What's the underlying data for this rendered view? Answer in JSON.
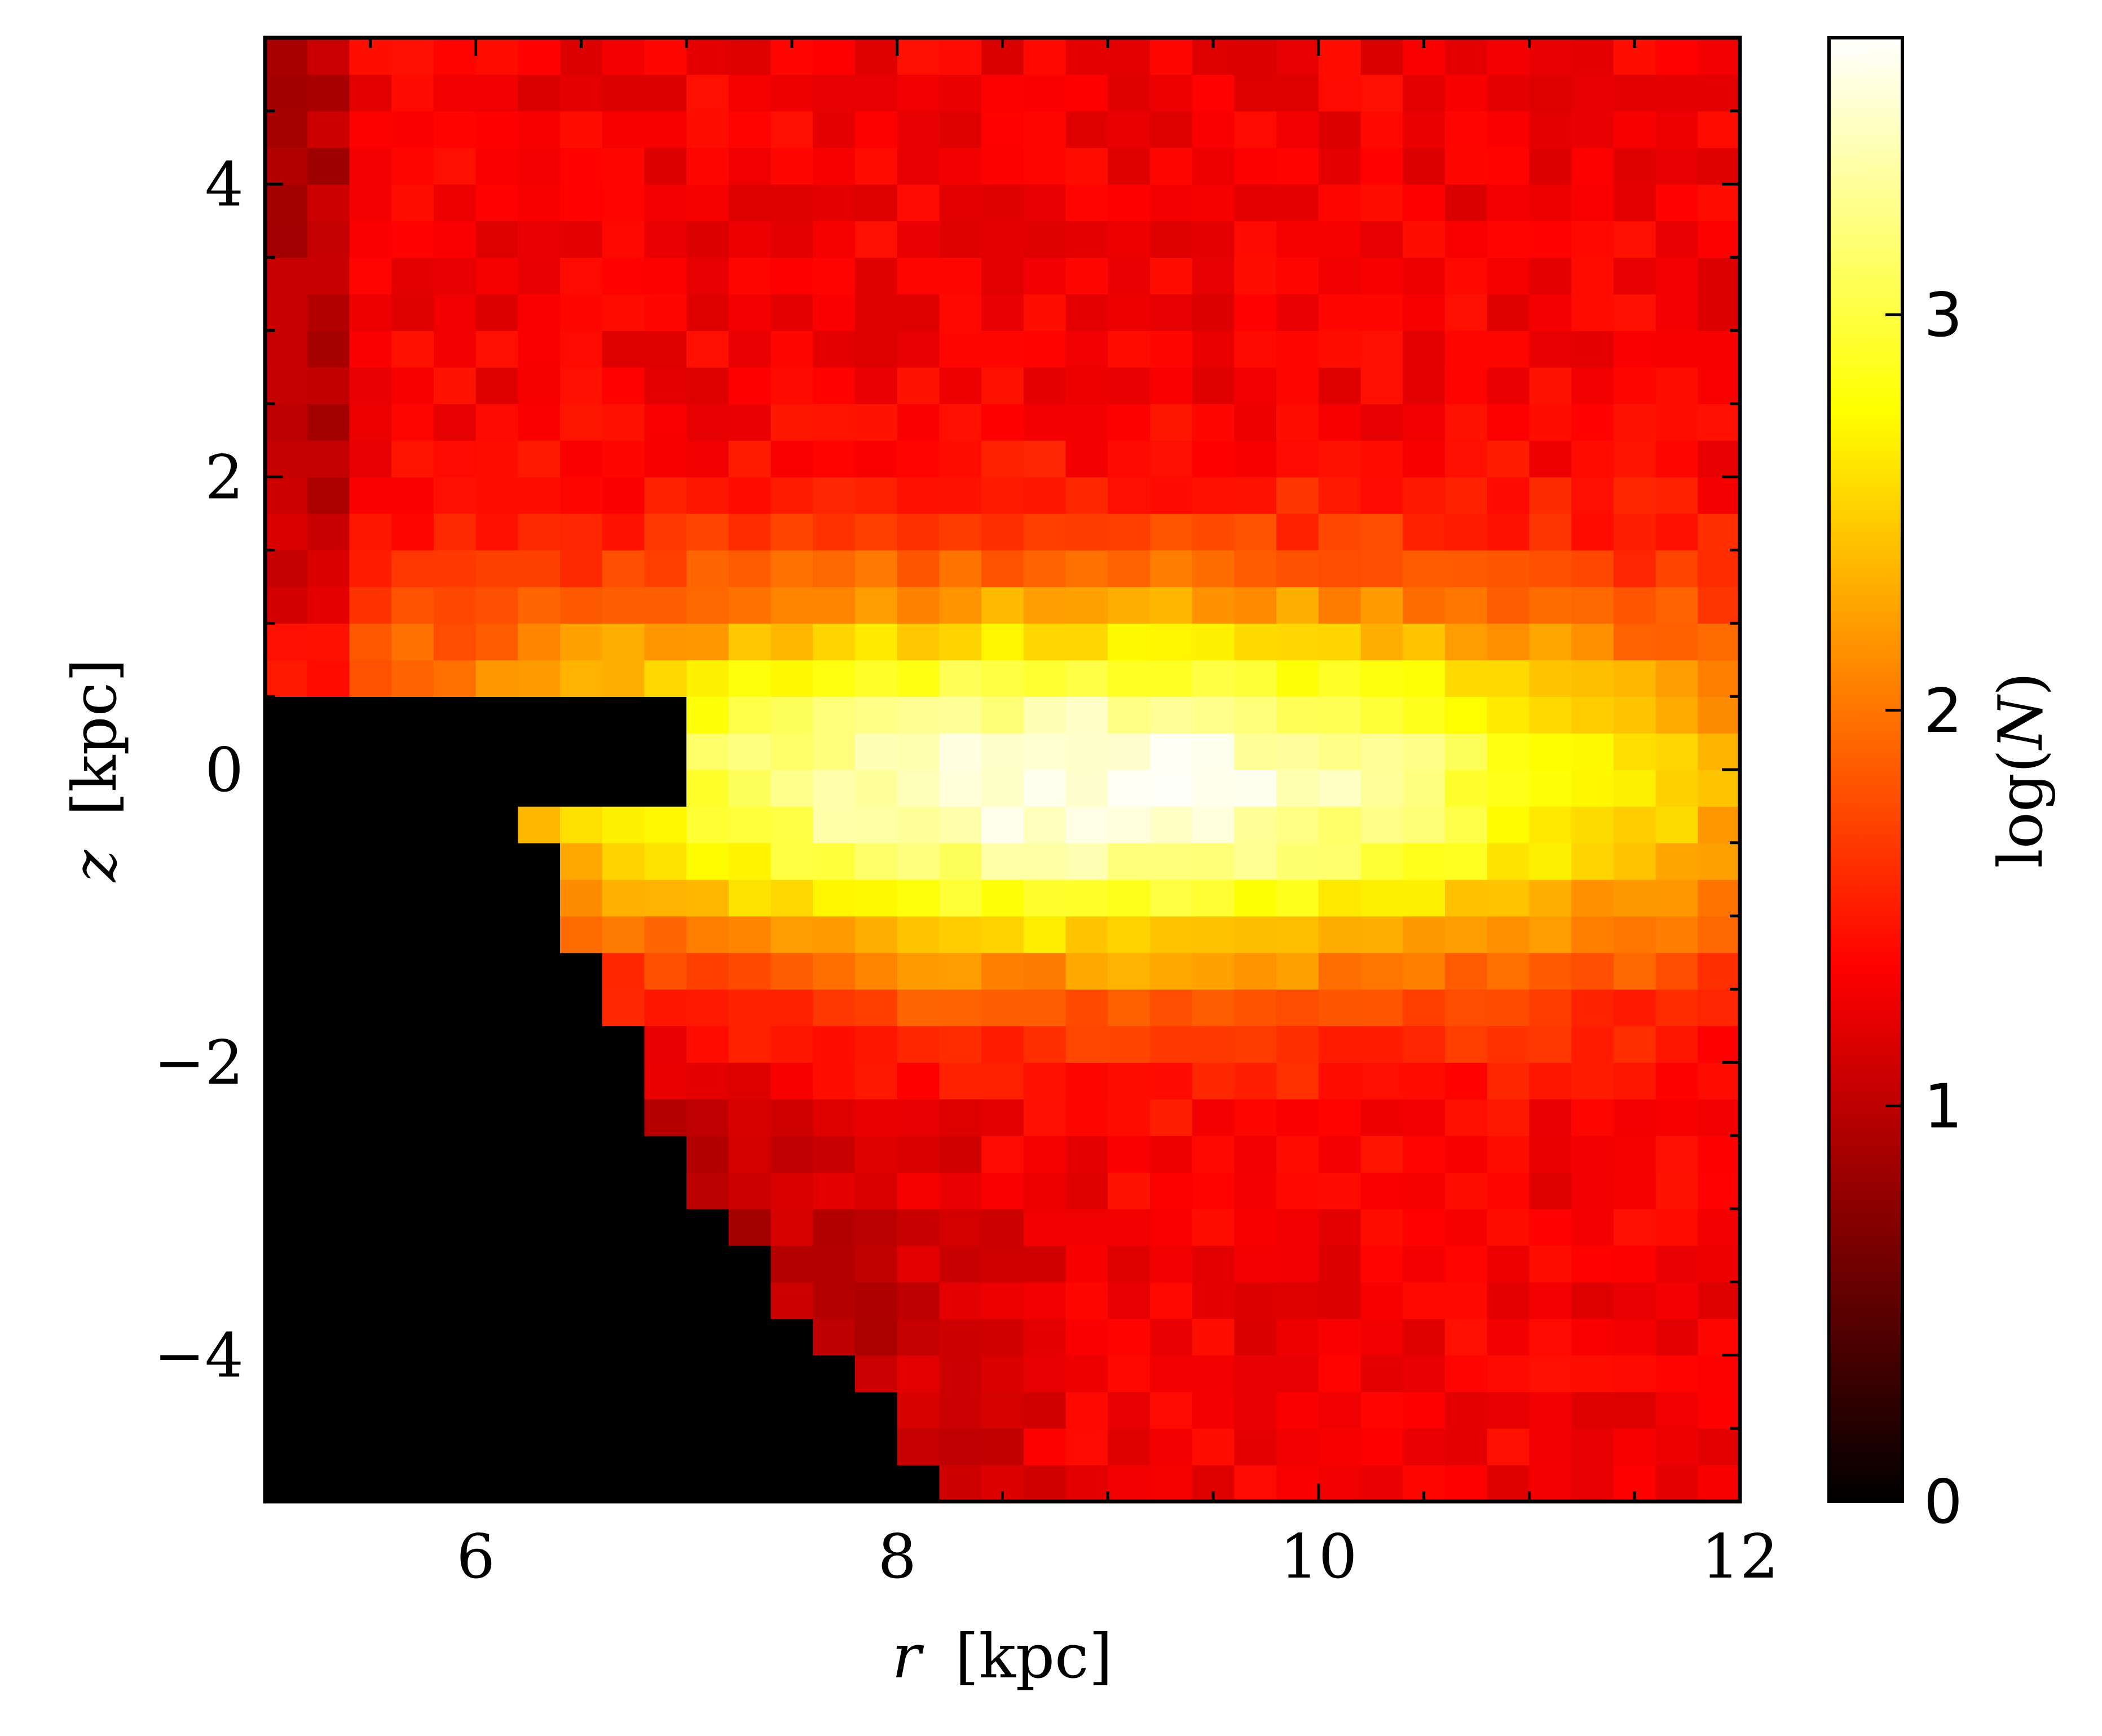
{
  "chart_data": {
    "type": "heatmap",
    "title": "",
    "xlabel_var": "r",
    "xlabel_unit": "[kpc]",
    "ylabel_var": "z",
    "ylabel_unit": "[kpc]",
    "xlim": [
      5,
      12
    ],
    "ylim": [
      -5,
      5
    ],
    "bins_x": 35,
    "bins_y": 40,
    "x_bin_width": 0.2,
    "y_bin_width": 0.25,
    "x_ticks": [
      6,
      8,
      10,
      12
    ],
    "x_tick_labels": [
      "6",
      "8",
      "10",
      "12"
    ],
    "y_ticks": [
      -4,
      -2,
      0,
      2,
      4
    ],
    "y_tick_labels": [
      "−4",
      "−2",
      "0",
      "2",
      "4"
    ],
    "colorbar": {
      "label_prefix": "log(",
      "label_var": "N",
      "label_suffix": ")",
      "range": [
        0,
        3.7
      ],
      "ticks": [
        0,
        1,
        2,
        3
      ],
      "tick_labels": [
        "0",
        "1",
        "2",
        "3"
      ],
      "colormap": "hot"
    },
    "value_model": {
      "description": "approximate log(N) per bin, read from colors",
      "disk_peak_r": 8.9,
      "disk_peak_z": -0.1,
      "disk_peak_value": 3.65,
      "disk_scale_height_kpc": 1.3,
      "edge_value": 1.3,
      "empty_region_value": 0
    }
  },
  "colors": {
    "background": "#ffffff",
    "axis": "#000000"
  }
}
